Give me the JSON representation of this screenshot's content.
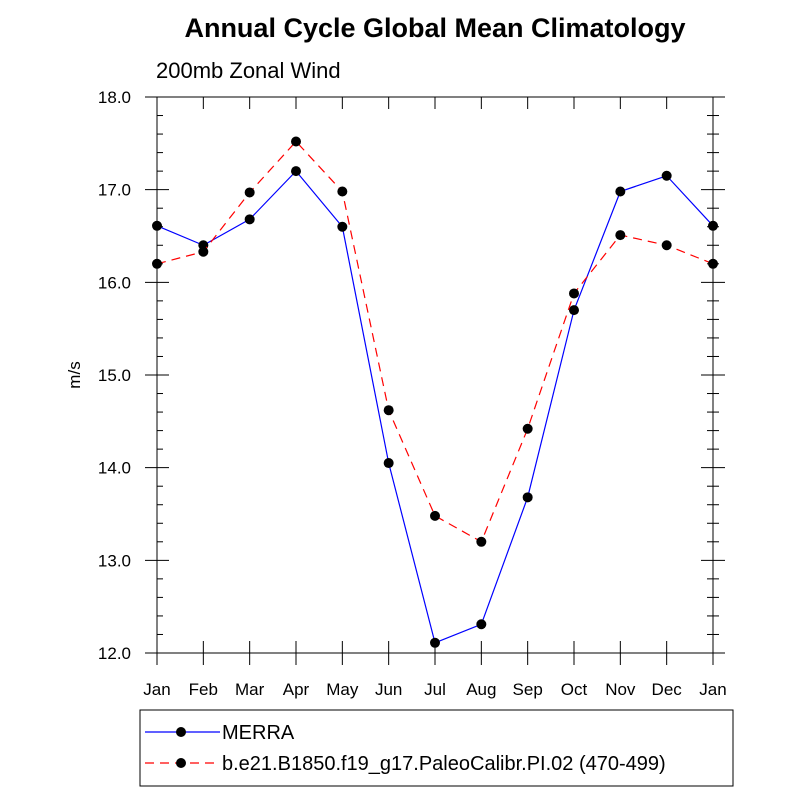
{
  "chart_data": {
    "type": "line",
    "title": "Annual Cycle Global Mean Climatology",
    "subtitle": "200mb Zonal Wind",
    "xlabel": "",
    "ylabel": "m/s",
    "categories": [
      "Jan",
      "Feb",
      "Mar",
      "Apr",
      "May",
      "Jun",
      "Jul",
      "Aug",
      "Sep",
      "Oct",
      "Nov",
      "Dec",
      "Jan"
    ],
    "ylim": [
      12.0,
      18.0
    ],
    "yticks": [
      "12.0",
      "13.0",
      "14.0",
      "15.0",
      "16.0",
      "17.0",
      "18.0"
    ],
    "series": [
      {
        "name": "MERRA",
        "color": "#0000ff",
        "dash": "solid",
        "values": [
          16.61,
          16.4,
          16.68,
          17.2,
          16.6,
          14.05,
          12.11,
          12.31,
          13.68,
          15.7,
          16.98,
          17.15,
          16.61
        ]
      },
      {
        "name": "b.e21.B1850.f19_g17.PaleoCalibr.PI.02 (470-499)",
        "color": "#ff0000",
        "dash": "dashed",
        "values": [
          16.2,
          16.33,
          16.97,
          17.52,
          16.98,
          14.62,
          13.48,
          13.2,
          14.42,
          15.88,
          16.51,
          16.4,
          16.2
        ]
      }
    ],
    "legend_position": "bottom"
  }
}
